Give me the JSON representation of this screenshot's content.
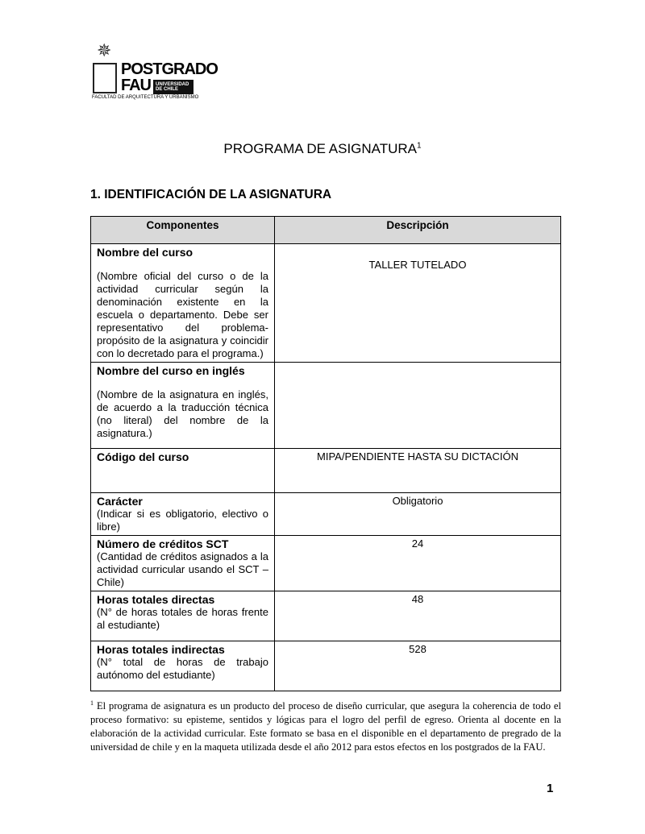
{
  "logo": {
    "line1": "POSTGRADO",
    "line2": "FAU",
    "badge": "UNIVERSIDAD DE CHILE",
    "subtitle": "FACULTAD DE ARQUITECTURA Y URBANISMO"
  },
  "title": "PROGRAMA DE ASIGNATURA",
  "title_footnote_mark": "1",
  "section_heading": "1. IDENTIFICACIÓN DE LA ASIGNATURA",
  "table": {
    "headers": [
      "Componentes",
      "Descripción"
    ],
    "rows": [
      {
        "name": "Nombre del curso",
        "desc": "(Nombre oficial del curso o de la actividad curricular según la denominación existente en la escuela o departamento. Debe ser representativo del problema-propósito de la asignatura y coincidir con lo decretado para el programa.)",
        "value": "TALLER TUTELADO"
      },
      {
        "name": "Nombre del curso en inglés",
        "desc": "(Nombre de la asignatura en inglés, de acuerdo a la traducción técnica (no literal) del nombre de la asignatura.)",
        "value": ""
      },
      {
        "name": "Código del curso",
        "desc": "",
        "value": "MIPA/PENDIENTE HASTA SU DICTACIÓN"
      },
      {
        "name": "Carácter",
        "desc": "(Indicar si es obligatorio, electivo o libre)",
        "value": "Obligatorio"
      },
      {
        "name": "Número de créditos SCT",
        "desc": "(Cantidad de créditos asignados a la actividad curricular usando el SCT – Chile)",
        "value": "24"
      },
      {
        "name": "Horas totales directas",
        "desc": "(N° de horas totales de horas frente al estudiante)",
        "value": "48"
      },
      {
        "name": "Horas totales indirectas",
        "desc": "(N° total de horas de trabajo autónomo del estudiante)",
        "value": "528"
      }
    ]
  },
  "footnote": {
    "mark": "1",
    "text": "El programa de asignatura es un producto del proceso de diseño curricular, que asegura la coherencia de todo el proceso formativo: su episteme, sentidos y lógicas para el logro del perfil de egreso. Orienta al docente en la elaboración de la actividad curricular. Este formato se basa en el disponible en el departamento de pregrado de la universidad de chile y en la maqueta utilizada desde el año 2012 para estos efectos en los postgrados de la FAU."
  },
  "page_number": "1"
}
